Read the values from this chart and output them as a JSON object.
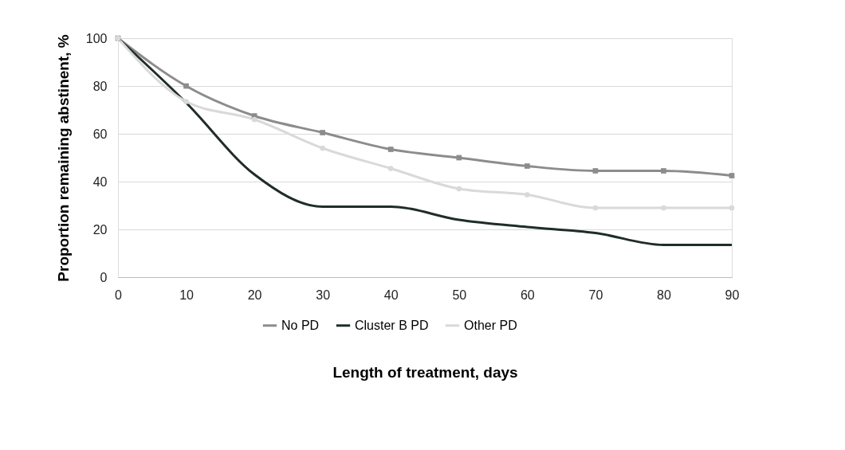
{
  "chart_data": {
    "type": "line",
    "xlabel": "Length of treatment, days",
    "ylabel": "Proportion remaining abstinent, %",
    "x": [
      0,
      10,
      20,
      30,
      40,
      50,
      60,
      70,
      80,
      90
    ],
    "xlim": [
      0,
      90
    ],
    "xticks": [
      0,
      10,
      20,
      30,
      40,
      50,
      60,
      70,
      80,
      90
    ],
    "ylim": [
      0,
      100
    ],
    "yticks": [
      0,
      20,
      40,
      60,
      80,
      100
    ],
    "grid": "y",
    "legend": "bottom",
    "series": [
      {
        "name": "No PD",
        "color": "#8c8c8c",
        "marker": "square",
        "values": [
          100,
          80,
          67.5,
          60.5,
          53.5,
          50,
          46.5,
          44.5,
          44.5,
          42.5
        ]
      },
      {
        "name": "Cluster B PD",
        "color": "#1f2d28",
        "marker": "none",
        "values": [
          100,
          73,
          43,
          29.5,
          29.5,
          24,
          21,
          18.5,
          13.5,
          13.5
        ]
      },
      {
        "name": "Other PD",
        "color": "#d9d9d9",
        "marker": "circle",
        "values": [
          100,
          73.5,
          66,
          54,
          45.5,
          37,
          34.5,
          29,
          29,
          29
        ]
      }
    ]
  }
}
